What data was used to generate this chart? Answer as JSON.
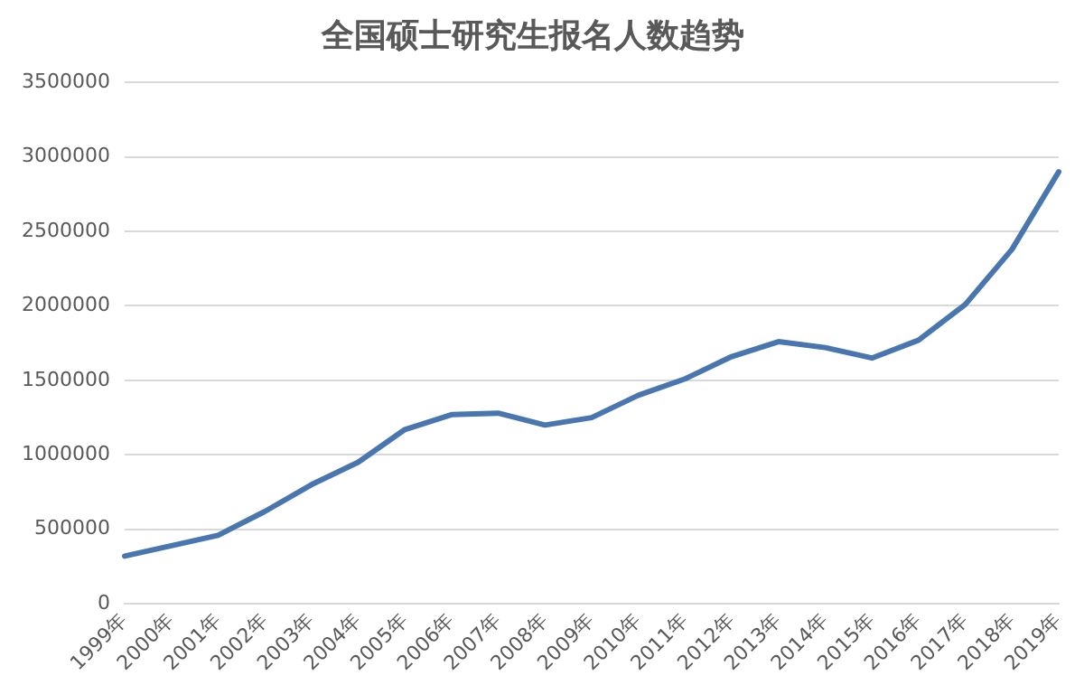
{
  "chart_data": {
    "type": "line",
    "title": "全国硕士研究生报名人数趋势",
    "categories": [
      "1999年",
      "2000年",
      "2001年",
      "2002年",
      "2003年",
      "2004年",
      "2005年",
      "2006年",
      "2007年",
      "2008年",
      "2009年",
      "2010年",
      "2011年",
      "2012年",
      "2013年",
      "2014年",
      "2015年",
      "2016年",
      "2017年",
      "2018年",
      "2019年"
    ],
    "series": [
      {
        "color": "#4a76b0",
        "values": [
          320000,
          390000,
          460000,
          620000,
          800000,
          950000,
          1170000,
          1270000,
          1280000,
          1200000,
          1250000,
          1400000,
          1510000,
          1660000,
          1760000,
          1720000,
          1650000,
          1770000,
          2010000,
          2380000,
          2900000
        ]
      }
    ],
    "ylim": [
      0,
      3500000
    ],
    "yticks": [
      0,
      500000,
      1000000,
      1500000,
      2000000,
      2500000,
      3000000,
      3500000
    ],
    "grid": "y",
    "legend": false,
    "marker": "none",
    "line_style": "solid"
  }
}
